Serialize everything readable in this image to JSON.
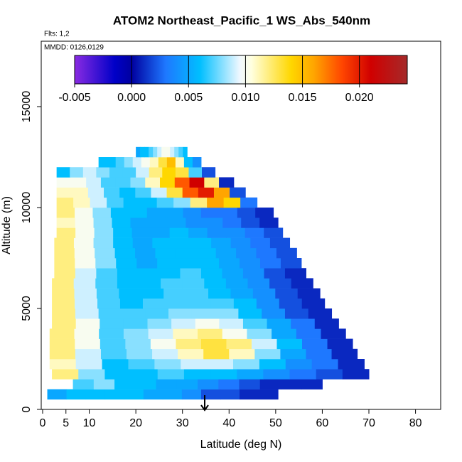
{
  "chart_data": {
    "type": "heatmap",
    "title": "ATOM2 Northeast_Pacific_1 WS_Abs_540nm",
    "notes": [
      "Flts: 1,2",
      "MMDD: 0126,0129"
    ],
    "xlabel": "Latitude (deg N)",
    "ylabel": "Altitude (m)",
    "xlim": [
      -0.3,
      85.4
    ],
    "xticks": [
      0,
      5,
      10,
      20,
      30,
      40,
      50,
      60,
      70,
      80
    ],
    "ylim": [
      0,
      18240
    ],
    "yticks": [
      0,
      5000,
      10000,
      15000
    ],
    "colorbar": {
      "lim": [
        -0.005,
        0.0242
      ],
      "ticks": [
        {
          "value": -0.005,
          "label": "-0.005"
        },
        {
          "value": 0,
          "label": "0.000"
        },
        {
          "value": 0.005,
          "label": "0.005"
        },
        {
          "value": 0.01,
          "label": "0.010"
        },
        {
          "value": 0.015,
          "label": "0.015"
        },
        {
          "value": 0.02,
          "label": "0.020"
        }
      ],
      "colormap": [
        [
          -0.005,
          "#8a2be2"
        ],
        [
          -0.0015,
          "#0000c8"
        ],
        [
          0,
          "#0000a0"
        ],
        [
          0.003,
          "#1e78ff"
        ],
        [
          0.006,
          "#00bfff"
        ],
        [
          0.0095,
          "#f0f8ff"
        ],
        [
          0.0105,
          "#ffffe0"
        ],
        [
          0.014,
          "#ffd700"
        ],
        [
          0.016,
          "#ffa500"
        ],
        [
          0.0185,
          "#ff4500"
        ],
        [
          0.021,
          "#d00000"
        ],
        [
          0.0242,
          "#a52a2a"
        ]
      ]
    },
    "rows": [
      {
        "alt": [
          500,
          1000
        ],
        "lat": [
          1,
          50.5
        ],
        "values": [
          0.005,
          0.006,
          0.006,
          0.006,
          0.006,
          0.005,
          0.005,
          0.004,
          0.002,
          0.002,
          0.001,
          0.001
        ]
      },
      {
        "alt": [
          1000,
          1500
        ],
        "lat": [
          6.5,
          60
        ],
        "values": [
          0.007,
          0.008,
          0.006,
          0.006,
          0.005,
          0.005,
          0.004,
          0.003,
          0.002,
          0.001,
          0.001,
          0.001
        ]
      },
      {
        "alt": [
          1500,
          2000
        ],
        "lat": [
          2,
          70
        ],
        "values": [
          0.012,
          0.008,
          0.006,
          0.006,
          0.007,
          0.006,
          0.006,
          0.005,
          0.004,
          0.003,
          0.002,
          0.001
        ]
      },
      {
        "alt": [
          2000,
          2500
        ],
        "lat": [
          1.5,
          69
        ],
        "values": [
          0.011,
          0.009,
          0.006,
          0.007,
          0.008,
          0.009,
          0.009,
          0.008,
          0.006,
          0.004,
          0.003,
          0.001
        ]
      },
      {
        "alt": [
          2500,
          3000
        ],
        "lat": [
          1.5,
          67.5
        ],
        "values": [
          0.012,
          0.009,
          0.007,
          0.008,
          0.009,
          0.011,
          0.013,
          0.011,
          0.008,
          0.005,
          0.003,
          0.001
        ]
      },
      {
        "alt": [
          3000,
          3500
        ],
        "lat": [
          1.5,
          66.5
        ],
        "values": [
          0.012,
          0.01,
          0.007,
          0.008,
          0.01,
          0.012,
          0.013,
          0.012,
          0.009,
          0.006,
          0.003,
          0.001
        ]
      },
      {
        "alt": [
          3500,
          4000
        ],
        "lat": [
          1.5,
          65
        ],
        "values": [
          0.012,
          0.01,
          0.007,
          0.008,
          0.009,
          0.011,
          0.012,
          0.01,
          0.008,
          0.005,
          0.003,
          0.001
        ]
      },
      {
        "alt": [
          4000,
          4500
        ],
        "lat": [
          2,
          63.5
        ],
        "values": [
          0.012,
          0.01,
          0.007,
          0.007,
          0.008,
          0.009,
          0.01,
          0.009,
          0.007,
          0.005,
          0.003,
          0.001
        ]
      },
      {
        "alt": [
          4500,
          5000
        ],
        "lat": [
          2,
          62
        ],
        "values": [
          0.012,
          0.009,
          0.007,
          0.007,
          0.007,
          0.008,
          0.008,
          0.008,
          0.006,
          0.004,
          0.002,
          0.001
        ]
      },
      {
        "alt": [
          5000,
          5500
        ],
        "lat": [
          2,
          60.5
        ],
        "values": [
          0.012,
          0.009,
          0.007,
          0.006,
          0.007,
          0.007,
          0.007,
          0.007,
          0.006,
          0.004,
          0.002,
          0.001
        ]
      },
      {
        "alt": [
          5500,
          6000
        ],
        "lat": [
          2,
          59.5
        ],
        "values": [
          0.012,
          0.009,
          0.007,
          0.006,
          0.006,
          0.007,
          0.007,
          0.006,
          0.005,
          0.004,
          0.002,
          0.001
        ]
      },
      {
        "alt": [
          6000,
          6500
        ],
        "lat": [
          2,
          58
        ],
        "values": [
          0.012,
          0.009,
          0.007,
          0.006,
          0.006,
          0.007,
          0.007,
          0.006,
          0.005,
          0.004,
          0.002,
          0.001
        ]
      },
      {
        "alt": [
          6500,
          7000
        ],
        "lat": [
          2.5,
          56.5
        ],
        "values": [
          0.012,
          0.009,
          0.007,
          0.006,
          0.006,
          0.006,
          0.007,
          0.006,
          0.005,
          0.004,
          0.002,
          0.001
        ]
      },
      {
        "alt": [
          7000,
          7500
        ],
        "lat": [
          2.5,
          55.5
        ],
        "values": [
          0.012,
          0.01,
          0.008,
          0.006,
          0.005,
          0.006,
          0.006,
          0.006,
          0.005,
          0.004,
          0.003,
          0.002
        ]
      },
      {
        "alt": [
          7500,
          8000
        ],
        "lat": [
          2.5,
          54.5
        ],
        "values": [
          0.012,
          0.01,
          0.008,
          0.006,
          0.005,
          0.006,
          0.006,
          0.006,
          0.005,
          0.004,
          0.003,
          0.002
        ]
      },
      {
        "alt": [
          8000,
          8500
        ],
        "lat": [
          2.5,
          53
        ],
        "values": [
          0.012,
          0.01,
          0.008,
          0.006,
          0.005,
          0.006,
          0.006,
          0.006,
          0.005,
          0.004,
          0.003,
          0.002
        ]
      },
      {
        "alt": [
          8500,
          9000
        ],
        "lat": [
          3,
          51.5
        ],
        "values": [
          0.012,
          0.01,
          0.008,
          0.006,
          0.005,
          0.005,
          0.006,
          0.005,
          0.004,
          0.004,
          0.003,
          0.002
        ]
      },
      {
        "alt": [
          9000,
          9500
        ],
        "lat": [
          3,
          50.5
        ],
        "values": [
          0.011,
          0.01,
          0.008,
          0.006,
          0.005,
          0.005,
          0.005,
          0.004,
          0.004,
          0.003,
          0.002,
          0.001
        ]
      },
      {
        "alt": [
          9500,
          10000
        ],
        "lat": [
          3,
          49.5
        ],
        "values": [
          0.012,
          0.01,
          0.008,
          0.006,
          0.006,
          0.005,
          0.005,
          0.004,
          0.003,
          0.003,
          0.002,
          0.001
        ]
      },
      {
        "alt": [
          10000,
          10500
        ],
        "lat": [
          3,
          46
        ],
        "values": [
          0.012,
          0.011,
          0.009,
          0.007,
          0.006,
          0.006,
          0.007,
          0.008,
          0.012,
          0.016,
          0.014,
          0.003
        ]
      },
      {
        "alt": [
          10500,
          11000
        ],
        "lat": [
          3,
          43.5
        ],
        "values": [
          0.011,
          0.011,
          0.009,
          0.007,
          0.006,
          0.007,
          0.009,
          0.013,
          0.018,
          0.02,
          0.016,
          0.002
        ]
      },
      {
        "alt": [
          11000,
          11500
        ],
        "lat": [
          3,
          41
        ],
        "values": [
          0.01,
          0.01,
          0.009,
          0.007,
          0.007,
          0.008,
          0.011,
          0.014,
          0.018,
          0.021,
          0.012,
          0.001
        ]
      },
      {
        "alt": [
          11500,
          12000
        ],
        "lat": [
          3,
          37
        ],
        "values": [
          0.006,
          0.008,
          0.009,
          0.008,
          0.007,
          0.007,
          0.009,
          0.012,
          0.014,
          0.013,
          0.007,
          0.002
        ]
      },
      {
        "alt": [
          12000,
          12500
        ],
        "lat": [
          12,
          34
        ],
        "values": [
          0.006,
          0.006,
          0.007,
          0.008,
          0.009,
          0.01,
          0.011,
          0.013,
          0.015,
          0.011,
          0.006,
          0.004
        ]
      },
      {
        "alt": [
          12500,
          13000
        ],
        "lat": [
          20,
          31
        ],
        "values": [
          0.005,
          0.006,
          0.006,
          0.007,
          0.008,
          0.009,
          0.01,
          0.01,
          0.009,
          0.008,
          0.007,
          0.006
        ]
      }
    ]
  }
}
